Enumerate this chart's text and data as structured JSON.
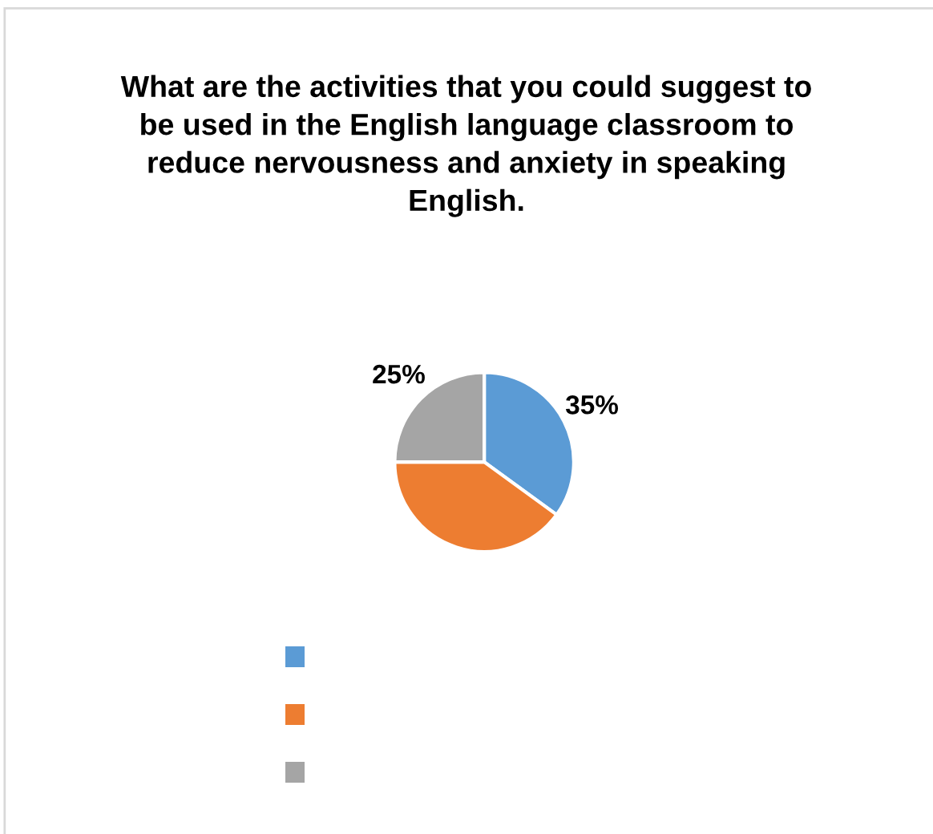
{
  "chart_data": {
    "type": "pie",
    "title": "What are the activities that you could suggest to be used in the English language classroom to reduce nervousness and anxiety in speaking English.",
    "categories": [
      null,
      null,
      null
    ],
    "values": [
      35,
      40,
      25
    ],
    "colors": [
      "#5b9bd5",
      "#ed7d31",
      "#a5a5a5"
    ],
    "value_labels": [
      "35%",
      null,
      "25%"
    ]
  }
}
